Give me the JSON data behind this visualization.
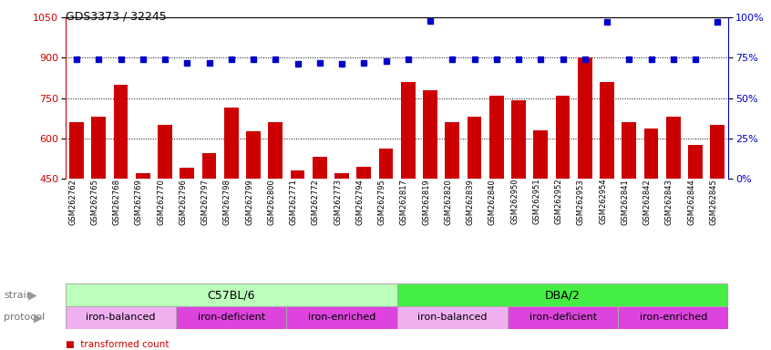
{
  "title": "GDS3373 / 32245",
  "samples": [
    "GSM262762",
    "GSM262765",
    "GSM262768",
    "GSM262769",
    "GSM262770",
    "GSM262796",
    "GSM262797",
    "GSM262798",
    "GSM262799",
    "GSM262800",
    "GSM262771",
    "GSM262772",
    "GSM262773",
    "GSM262794",
    "GSM262795",
    "GSM262817",
    "GSM262819",
    "GSM262820",
    "GSM262839",
    "GSM262840",
    "GSM262950",
    "GSM262951",
    "GSM262952",
    "GSM262953",
    "GSM262954",
    "GSM262841",
    "GSM262842",
    "GSM262843",
    "GSM262844",
    "GSM262845"
  ],
  "transformed_count": [
    660,
    680,
    800,
    470,
    650,
    490,
    545,
    715,
    625,
    660,
    480,
    530,
    470,
    495,
    560,
    810,
    780,
    660,
    680,
    760,
    740,
    630,
    760,
    900,
    810,
    660,
    635,
    680,
    575,
    650
  ],
  "percentile_rank": [
    74,
    74,
    74,
    74,
    74,
    72,
    72,
    74,
    74,
    74,
    71,
    72,
    71,
    72,
    73,
    74,
    98,
    74,
    74,
    74,
    74,
    74,
    74,
    74,
    97,
    74,
    74,
    74,
    74,
    97
  ],
  "ylim_left": [
    450,
    1050
  ],
  "ylim_right": [
    0,
    100
  ],
  "yticks_left": [
    450,
    600,
    750,
    900,
    1050
  ],
  "yticks_right": [
    0,
    25,
    50,
    75,
    100
  ],
  "bar_color": "#cc0000",
  "dot_color": "#0000cc",
  "strain_groups": [
    {
      "label": "C57BL/6",
      "start": 0,
      "end": 15,
      "color": "#bbffbb"
    },
    {
      "label": "DBA/2",
      "start": 15,
      "end": 30,
      "color": "#44ee44"
    }
  ],
  "protocol_groups": [
    {
      "label": "iron-balanced",
      "start": 0,
      "end": 5,
      "color": "#f0b0f0"
    },
    {
      "label": "iron-deficient",
      "start": 5,
      "end": 10,
      "color": "#dd44dd"
    },
    {
      "label": "iron-enriched",
      "start": 10,
      "end": 15,
      "color": "#dd44dd"
    },
    {
      "label": "iron-balanced",
      "start": 15,
      "end": 20,
      "color": "#f0b0f0"
    },
    {
      "label": "iron-deficient",
      "start": 20,
      "end": 25,
      "color": "#dd44dd"
    },
    {
      "label": "iron-enriched",
      "start": 25,
      "end": 30,
      "color": "#dd44dd"
    }
  ]
}
